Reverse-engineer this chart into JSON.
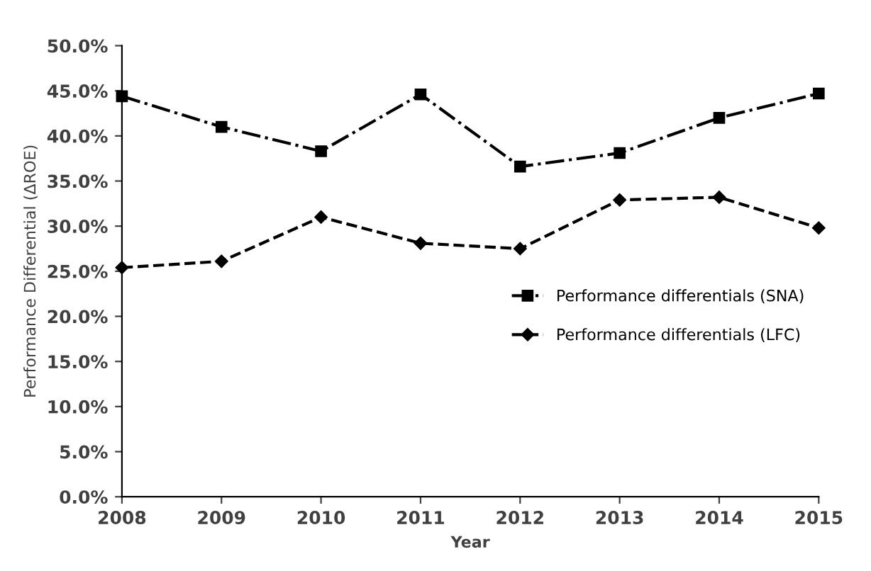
{
  "chart_data": {
    "type": "line",
    "xlabel": "Year",
    "ylabel": "Performance Differential (ΔROE)",
    "x": [
      2008,
      2009,
      2010,
      2011,
      2012,
      2013,
      2014,
      2015
    ],
    "series": [
      {
        "name": "Performance differentials (SNA)",
        "color": "#000000",
        "marker": "square",
        "line_style": "dashdot",
        "values": [
          44.4,
          41.0,
          38.3,
          44.6,
          36.6,
          38.1,
          42.0,
          44.7
        ]
      },
      {
        "name": "Performance differentials (LFC)",
        "color": "#000000",
        "marker": "diamond",
        "line_style": "dashed",
        "values": [
          25.4,
          26.1,
          31.0,
          28.1,
          27.5,
          32.9,
          33.2,
          29.8
        ]
      }
    ],
    "xlim": [
      2008,
      2015
    ],
    "xticks": [
      2008,
      2009,
      2010,
      2011,
      2012,
      2013,
      2014,
      2015
    ],
    "ylim": [
      0,
      50
    ],
    "yticks": [
      {
        "value": 0,
        "label": "0.0%"
      },
      {
        "value": 5,
        "label": "5.0%"
      },
      {
        "value": 10,
        "label": "10.0%"
      },
      {
        "value": 15,
        "label": "15.0%"
      },
      {
        "value": 20,
        "label": "20.0%"
      },
      {
        "value": 25,
        "label": "25.0%"
      },
      {
        "value": 30,
        "label": "30.0%"
      },
      {
        "value": 35,
        "label": "35.0%"
      },
      {
        "value": 40,
        "label": "40.0%"
      },
      {
        "value": 45,
        "label": "45.0%"
      },
      {
        "value": 50,
        "label": "50.0%"
      }
    ],
    "grid": false,
    "legend": "right"
  }
}
